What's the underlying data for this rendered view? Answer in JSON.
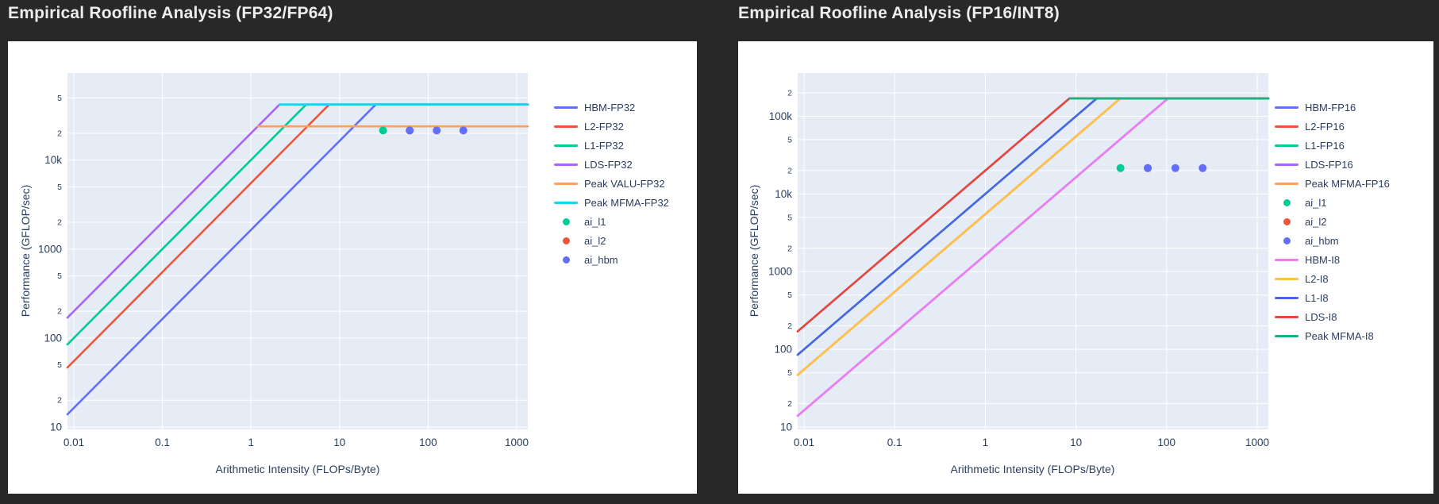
{
  "page": {
    "background": "#282828",
    "card_background": "#ffffff",
    "title_color": "#ededed",
    "axis_text_color": "#2a3f5f",
    "grid_color": "#ffffff",
    "plot_background": "#e5ecf6"
  },
  "chart_data": [
    {
      "type": "line",
      "title": "Empirical Roofline Analysis (FP32/FP64)",
      "xlabel": "Arithmetic Intensity (FLOPs/Byte)",
      "ylabel": "Performance (GFLOP/sec)",
      "x_scale": "log",
      "y_scale": "log",
      "xlim": [
        0.01,
        1000
      ],
      "ylim": [
        10,
        95000
      ],
      "grid": true,
      "legend_position": "right",
      "x_ticks": [
        [
          0.01,
          "0.01"
        ],
        [
          0.1,
          "0.1"
        ],
        [
          1,
          "1"
        ],
        [
          10,
          "10"
        ],
        [
          100,
          "100"
        ],
        [
          1000,
          "1000"
        ]
      ],
      "y_ticks": [
        [
          10,
          "10",
          1
        ],
        [
          20,
          "2",
          0
        ],
        [
          50,
          "5",
          0
        ],
        [
          100,
          "100",
          1
        ],
        [
          200,
          "2",
          0
        ],
        [
          500,
          "5",
          0
        ],
        [
          1000,
          "1000",
          1
        ],
        [
          2000,
          "2",
          0
        ],
        [
          5000,
          "5",
          0
        ],
        [
          10000,
          "10k",
          1
        ],
        [
          20000,
          "2",
          0
        ],
        [
          50000,
          "5",
          0
        ]
      ],
      "series": [
        {
          "name": "HBM-FP32",
          "kind": "bw",
          "color": "#636EFA",
          "bandwidth_gbps": 1638,
          "peak_gflops": 42000
        },
        {
          "name": "L2-FP32",
          "kind": "bw",
          "color": "#EF553B",
          "bandwidth_gbps": 5500,
          "peak_gflops": 42000
        },
        {
          "name": "L1-FP32",
          "kind": "bw",
          "color": "#00CC96",
          "bandwidth_gbps": 10000,
          "peak_gflops": 42000
        },
        {
          "name": "LDS-FP32",
          "kind": "bw",
          "color": "#AB63FA",
          "bandwidth_gbps": 20000,
          "peak_gflops": 42000
        },
        {
          "name": "Peak VALU-FP32",
          "kind": "roof",
          "color": "#FFA15A",
          "peak_gflops": 23900,
          "start_ai": 1.2
        },
        {
          "name": "Peak MFMA-FP32",
          "kind": "roof",
          "color": "#19D3F3",
          "peak_gflops": 42000,
          "start_ai": 2.1
        },
        {
          "name": "ai_l1",
          "kind": "points",
          "color": "#00CC96",
          "data": [
            {
              "x": 31,
              "y": 21500
            }
          ]
        },
        {
          "name": "ai_l2",
          "kind": "points",
          "color": "#EF553B",
          "data": [
            {
              "x": 62,
              "y": 21500
            }
          ]
        },
        {
          "name": "ai_hbm",
          "kind": "points",
          "color": "#636EFA",
          "data": [
            {
              "x": 62,
              "y": 21500
            },
            {
              "x": 125,
              "y": 21500
            },
            {
              "x": 250,
              "y": 21500
            }
          ]
        }
      ]
    },
    {
      "type": "line",
      "title": "Empirical Roofline Analysis (FP16/INT8)",
      "xlabel": "Arithmetic Intensity (FLOPs/Byte)",
      "ylabel": "Performance (GFLOP/sec)",
      "x_scale": "log",
      "y_scale": "log",
      "xlim": [
        0.01,
        1000
      ],
      "ylim": [
        10,
        360000
      ],
      "grid": true,
      "legend_position": "right",
      "x_ticks": [
        [
          0.01,
          "0.01"
        ],
        [
          0.1,
          "0.1"
        ],
        [
          1,
          "1"
        ],
        [
          10,
          "10"
        ],
        [
          100,
          "100"
        ],
        [
          1000,
          "1000"
        ]
      ],
      "y_ticks": [
        [
          10,
          "10",
          1
        ],
        [
          20,
          "2",
          0
        ],
        [
          50,
          "5",
          0
        ],
        [
          100,
          "100",
          1
        ],
        [
          200,
          "2",
          0
        ],
        [
          500,
          "5",
          0
        ],
        [
          1000,
          "1000",
          1
        ],
        [
          2000,
          "2",
          0
        ],
        [
          5000,
          "5",
          0
        ],
        [
          10000,
          "10k",
          1
        ],
        [
          20000,
          "2",
          0
        ],
        [
          50000,
          "5",
          0
        ],
        [
          100000,
          "100k",
          1
        ],
        [
          200000,
          "2",
          0
        ]
      ],
      "series": [
        {
          "name": "HBM-FP16",
          "kind": "bw",
          "color": "#636EFA",
          "bandwidth_gbps": 1638,
          "peak_gflops": 170000
        },
        {
          "name": "L2-FP16",
          "kind": "bw",
          "color": "#EF553B",
          "bandwidth_gbps": 5500,
          "peak_gflops": 170000
        },
        {
          "name": "L1-FP16",
          "kind": "bw",
          "color": "#00CC96",
          "bandwidth_gbps": 10000,
          "peak_gflops": 170000
        },
        {
          "name": "LDS-FP16",
          "kind": "bw",
          "color": "#AB63FA",
          "bandwidth_gbps": 20000,
          "peak_gflops": 170000
        },
        {
          "name": "Peak MFMA-FP16",
          "kind": "roof",
          "color": "#FFA15A",
          "peak_gflops": 170000,
          "start_ai": 8.5
        },
        {
          "name": "ai_l1",
          "kind": "points",
          "color": "#00CC96",
          "data": [
            {
              "x": 31,
              "y": 21500
            }
          ]
        },
        {
          "name": "ai_l2",
          "kind": "points",
          "color": "#EF553B",
          "data": [
            {
              "x": 62,
              "y": 21500
            }
          ]
        },
        {
          "name": "ai_hbm",
          "kind": "points",
          "color": "#636EFA",
          "data": [
            {
              "x": 62,
              "y": 21500
            },
            {
              "x": 125,
              "y": 21500
            },
            {
              "x": 250,
              "y": 21500
            }
          ]
        },
        {
          "name": "HBM-I8",
          "kind": "bw",
          "color": "#EE7DF0",
          "bandwidth_gbps": 1638,
          "peak_gflops": 170000
        },
        {
          "name": "L2-I8",
          "kind": "bw",
          "color": "#FDC246",
          "bandwidth_gbps": 5500,
          "peak_gflops": 170000
        },
        {
          "name": "L1-I8",
          "kind": "bw",
          "color": "#4A63E7",
          "bandwidth_gbps": 10000,
          "peak_gflops": 170000
        },
        {
          "name": "LDS-I8",
          "kind": "bw",
          "color": "#E4483B",
          "bandwidth_gbps": 20000,
          "peak_gflops": 170000
        },
        {
          "name": "Peak MFMA-I8",
          "kind": "roof",
          "color": "#16B57D",
          "peak_gflops": 170000,
          "start_ai": 8.5
        }
      ]
    }
  ]
}
